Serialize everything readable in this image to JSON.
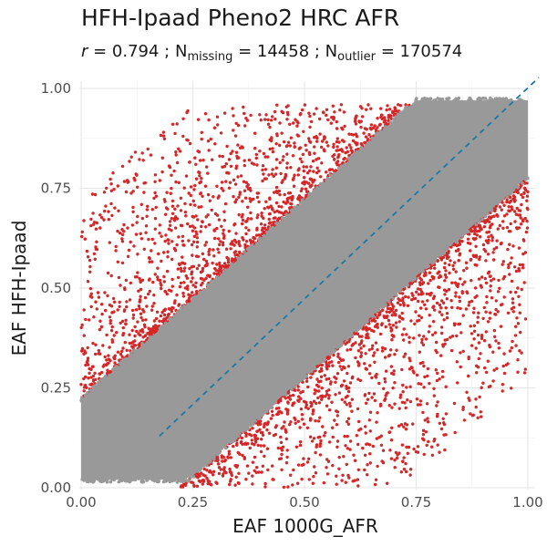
{
  "chart_data": {
    "type": "scatter",
    "title": "HFH-Ipaad Pheno2 HRC AFR",
    "subtitle": {
      "r_label": "r",
      "r_value": " = 0.794 ; N",
      "missing_sub": "missing",
      "missing_value": " = 14458 ; N",
      "outlier_sub": "outlier",
      "outlier_value": " = 170574"
    },
    "xlabel": "EAF 1000G_AFR",
    "ylabel": "EAF HFH-Ipaad",
    "xlim": [
      0,
      1
    ],
    "ylim": [
      0,
      1
    ],
    "x_ticks": [
      "0.00",
      "0.25",
      "0.50",
      "0.75",
      "1.00"
    ],
    "y_ticks": [
      "0.00",
      "0.25",
      "0.50",
      "0.75",
      "1.00"
    ],
    "grid": true,
    "reference_line": {
      "slope": 1,
      "intercept": 0,
      "style": "dashed",
      "color": "#1f78a4"
    },
    "series": [
      {
        "role": "inlier",
        "color": "#999999",
        "band": {
          "lower_offset": -0.22,
          "upper_offset": 0.22,
          "y_min": 0.02,
          "y_max": 0.97
        }
      },
      {
        "role": "outlier",
        "color": "#d62728",
        "band": {
          "inner_offset": 0.22,
          "outer_offset": 0.72,
          "y_min": 0.0,
          "y_max": 0.96
        }
      }
    ],
    "r": 0.794,
    "n_missing": 14458,
    "n_outlier": 170574
  }
}
